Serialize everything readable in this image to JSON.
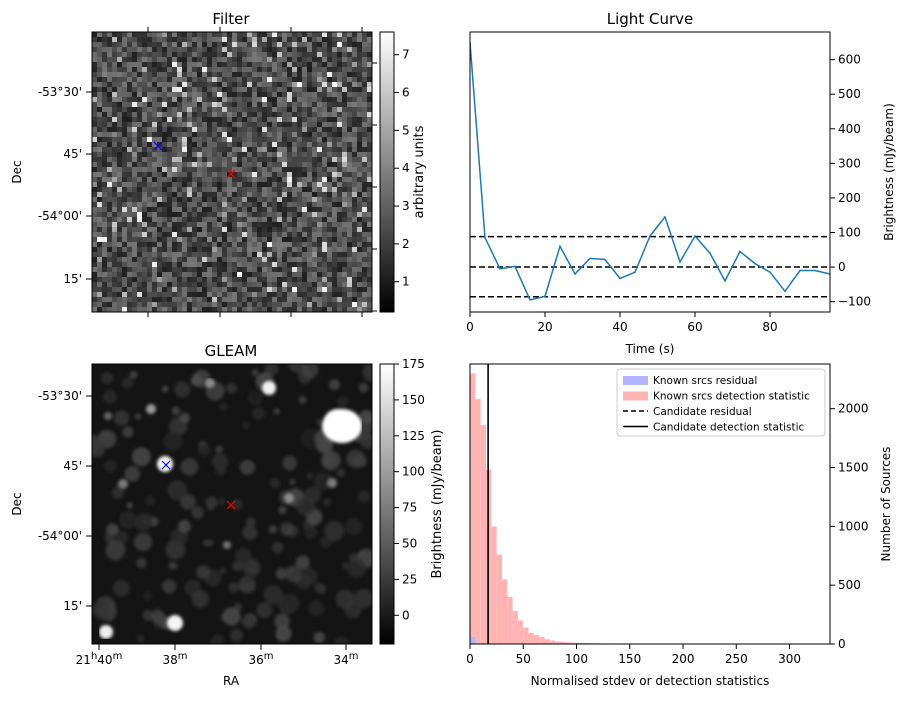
{
  "panels": {
    "filter": {
      "title": "Filter",
      "ylabel": "Dec",
      "y_ticks": [
        "-53°30'",
        "45'",
        "-54°00'",
        "15'"
      ],
      "colorbar": {
        "label": "arbitrary units",
        "ticks": [
          "7",
          "6",
          "5",
          "4",
          "3",
          "2",
          "1"
        ],
        "range": [
          0.2,
          7.6
        ],
        "colormap": "gray"
      },
      "markers": [
        {
          "symbol": "x",
          "color": "#0000ff"
        },
        {
          "symbol": "x",
          "color": "#ff0000"
        }
      ]
    },
    "gleam": {
      "title": "GLEAM",
      "ylabel": "Dec",
      "xlabel": "RA",
      "y_ticks": [
        "-53°30'",
        "45'",
        "-54°00'",
        "15'"
      ],
      "x_ticks": [
        {
          "main": "21",
          "sup1": "h",
          "mid": "40",
          "sup2": "m"
        },
        {
          "main": "38",
          "sup1": "",
          "mid": "",
          "sup2": "m"
        },
        {
          "main": "36",
          "sup1": "",
          "mid": "",
          "sup2": "m"
        },
        {
          "main": "34",
          "sup1": "",
          "mid": "",
          "sup2": "m"
        }
      ],
      "colorbar": {
        "label": "Brightness (mJy/beam)",
        "ticks": [
          "175",
          "150",
          "125",
          "100",
          "75",
          "50",
          "25",
          "0"
        ],
        "range": [
          -20,
          175
        ],
        "colormap": "gray"
      },
      "markers": [
        {
          "symbol": "x",
          "color": "#0000ff"
        },
        {
          "symbol": "x",
          "color": "#ff0000"
        }
      ]
    }
  },
  "chart_data": [
    {
      "type": "line",
      "title": "Light Curve",
      "xlabel": "Time (s)",
      "ylabel": "Brightness (mJy/beam)",
      "xlim": [
        0,
        96
      ],
      "ylim": [
        -130,
        680
      ],
      "x_ticks": [
        "0",
        "20",
        "40",
        "60",
        "80"
      ],
      "y_ticks": [
        "600",
        "500",
        "400",
        "300",
        "200",
        "100",
        "0",
        "-100"
      ],
      "color": "#1f77b4",
      "x": [
        0,
        4,
        8,
        12,
        16,
        20,
        24,
        28,
        32,
        36,
        40,
        44,
        48,
        52,
        56,
        60,
        64,
        68,
        72,
        76,
        80,
        84,
        88,
        92,
        96
      ],
      "y": [
        650,
        85,
        -5,
        2,
        -95,
        -85,
        60,
        -20,
        25,
        22,
        -33,
        -15,
        90,
        145,
        15,
        90,
        40,
        -40,
        45,
        10,
        -15,
        -70,
        -10,
        -10,
        -20
      ],
      "hlines": [
        88,
        0,
        -86
      ]
    },
    {
      "type": "histogram",
      "xlabel": "Normalised stdev or detection statistics",
      "ylabel": "Number of Sources",
      "xlim": [
        0,
        338
      ],
      "ylim": [
        0,
        2380
      ],
      "x_ticks": [
        "0",
        "50",
        "100",
        "150",
        "200",
        "250",
        "300"
      ],
      "y_ticks": [
        "2000",
        "1500",
        "1000",
        "500",
        "0"
      ],
      "legend": [
        {
          "label": "Known srcs residual",
          "style": "patch",
          "color": "#b3b3ff"
        },
        {
          "label": "Known srcs detection statistic",
          "style": "patch",
          "color": "#ffb3b3"
        },
        {
          "label": "Candidate residual",
          "style": "dashed",
          "color": "#000000"
        },
        {
          "label": "Candidate detection statistic",
          "style": "solid",
          "color": "#000000"
        }
      ],
      "legend_position": "top-right",
      "bin_width": 5,
      "series": [
        {
          "name": "Known srcs detection statistic",
          "color": "#ffb3b3",
          "bin_start": 0,
          "counts": [
            2300,
            2080,
            1860,
            1480,
            1000,
            760,
            550,
            400,
            280,
            200,
            140,
            95,
            75,
            60,
            40,
            30,
            22,
            18,
            14,
            12,
            10,
            9,
            8,
            7,
            6,
            5,
            5,
            4,
            4,
            3,
            3,
            2,
            2,
            2,
            2,
            2,
            2,
            2,
            2,
            1,
            1,
            1,
            1,
            1,
            1,
            1,
            1,
            1,
            1,
            1,
            1,
            1,
            1,
            1,
            1,
            1,
            1,
            1,
            1,
            1,
            1,
            1,
            1,
            1,
            1,
            1
          ]
        },
        {
          "name": "Known srcs residual",
          "color": "#b3b3ff",
          "bin_start": 0,
          "counts": [
            60,
            6,
            2
          ]
        }
      ],
      "vlines": [
        {
          "style": "solid",
          "x": 17
        }
      ]
    }
  ]
}
